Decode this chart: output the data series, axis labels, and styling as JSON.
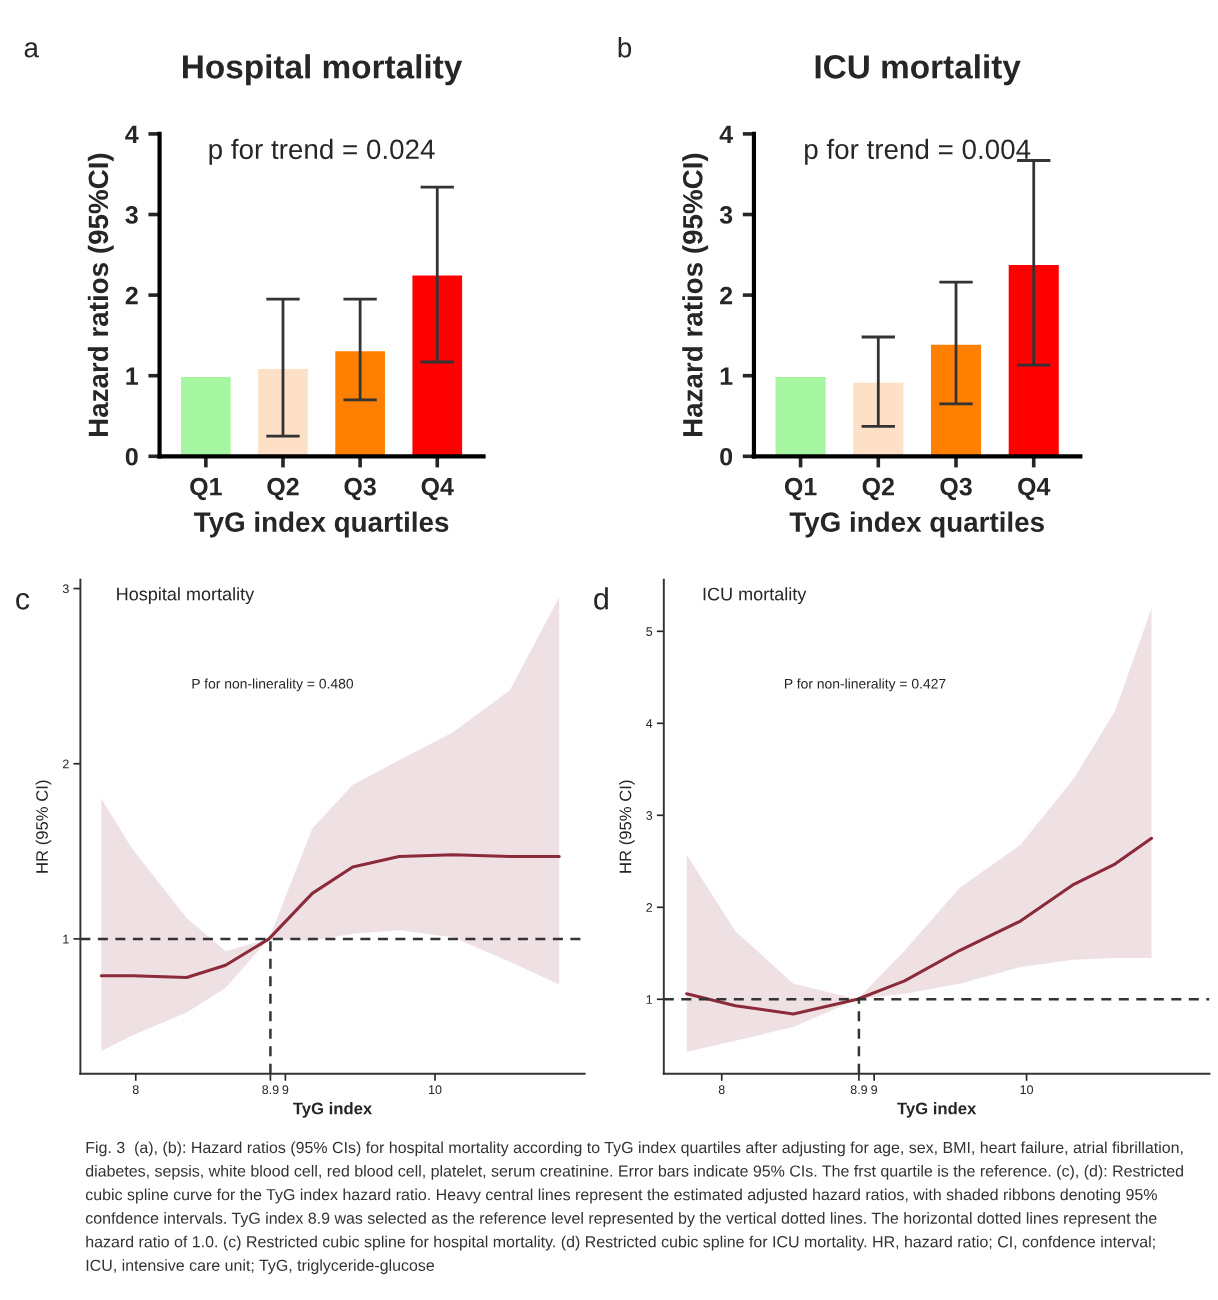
{
  "chart_data": [
    {
      "type": "bar",
      "title": "Hospital mortality",
      "annotations": [
        "a",
        "p for trend = 0.024"
      ],
      "xlabel": "TyG index quartiles",
      "ylabel": "Hazard ratios (95%CI)",
      "categories": [
        "Q1",
        "Q2",
        "Q3",
        "Q4"
      ],
      "values": [
        1.0,
        1.1,
        1.32,
        2.26
      ],
      "errors": [
        null,
        [
          0.25,
          1.95
        ],
        [
          0.7,
          1.95
        ],
        [
          1.17,
          3.34
        ]
      ],
      "colors": [
        "#a6f5a0",
        "#fde0c6",
        "#ff8000",
        "#ff0000"
      ],
      "ylim": [
        0,
        4
      ],
      "yticks": [
        0,
        1,
        2,
        3,
        4
      ],
      "grid": false
    },
    {
      "type": "bar",
      "title": "ICU mortality",
      "annotations": [
        "b",
        "p for trend = 0.004"
      ],
      "xlabel": "TyG index quartiles",
      "ylabel": "Hazard ratios (95%CI)",
      "categories": [
        "Q1",
        "Q2",
        "Q3",
        "Q4"
      ],
      "values": [
        1.0,
        0.93,
        1.4,
        2.39
      ],
      "errors": [
        null,
        [
          0.37,
          1.48
        ],
        [
          0.65,
          2.16
        ],
        [
          1.13,
          3.67
        ]
      ],
      "colors": [
        "#a6f5a0",
        "#fde0c6",
        "#ff8000",
        "#ff0000"
      ],
      "ylim": [
        0,
        4
      ],
      "yticks": [
        0,
        1,
        2,
        3,
        4
      ],
      "grid": false
    },
    {
      "type": "line",
      "title": "Hospital mortality",
      "annotations": [
        "c",
        "P for non-linerality = 0.480"
      ],
      "xlabel": "TyG index",
      "ylabel": "HR (95% CI)",
      "xlim": [
        7.63,
        11.0
      ],
      "ylim": [
        0.23,
        3.05
      ],
      "xticks": [
        8,
        8.9,
        9,
        10
      ],
      "yticks": [
        1,
        2,
        3
      ],
      "grid": false,
      "series": [
        {
          "color": "#8b2a3a",
          "x": [
            7.77,
            7.98,
            8.34,
            8.6,
            8.89,
            9.18,
            9.45,
            9.76,
            10.12,
            10.5,
            10.83
          ],
          "values": [
            0.79,
            0.79,
            0.78,
            0.85,
            1.0,
            1.26,
            1.41,
            1.47,
            1.48,
            1.47,
            1.47
          ],
          "lower": [
            0.36,
            0.45,
            0.58,
            0.72,
            1.0,
            0.99,
            1.03,
            1.05,
            1.01,
            0.87,
            0.74
          ],
          "upper": [
            1.8,
            1.51,
            1.12,
            0.93,
            1.0,
            1.63,
            1.88,
            2.02,
            2.18,
            2.42,
            2.95
          ]
        }
      ],
      "ref_lines": [
        {
          "axis": "y",
          "value": 1,
          "line_style": "dashed"
        },
        {
          "axis": "x",
          "value": 8.9,
          "line_style": "dashed"
        }
      ]
    },
    {
      "type": "line",
      "title": "ICU mortality",
      "annotations": [
        "d",
        "P for non-linerality = 0.427",
        "Fig. 3  (a), (b): Hazard ratios (95% CIs) for hospital mortality according to TyG index quartiles after adjusting for age, sex, BMI, heart failure, atrial fibrillation,\ndiabetes, sepsis, white blood cell, red blood cell, platelet, serum creatinine. Error bars indicate 95% CIs. The frst quartile is the reference. (c), (d): Restricted\ncubic spline curve for the TyG index hazard ratio. Heavy central lines represent the estimated adjusted hazard ratios, with shaded ribbons denoting 95%\nconfdence intervals. TyG index 8.9 was selected as the reference level represented by the vertical dotted lines. The horizontal dotted lines represent the\nhazard ratio of 1.0. (c) Restricted cubic spline for hospital mortality. (d) Restricted cubic spline for ICU mortality. HR, hazard ratio; CI, confdence interval;\nICU, intensive care unit; TyG, triglyceride-glucose"
      ],
      "xlabel": "TyG index",
      "ylabel": "HR (95% CI)",
      "xlim": [
        7.62,
        11.2
      ],
      "ylim": [
        0.19,
        5.56
      ],
      "xticks": [
        8,
        8.9,
        9,
        10
      ],
      "yticks": [
        1,
        2,
        3,
        4,
        5
      ],
      "grid": false,
      "series": [
        {
          "color": "#8b2a3a",
          "x": [
            7.77,
            8.09,
            8.47,
            8.89,
            9.2,
            9.56,
            9.96,
            10.31,
            10.58,
            10.82
          ],
          "values": [
            1.06,
            0.93,
            0.84,
            1.0,
            1.2,
            1.53,
            1.85,
            2.25,
            2.47,
            2.75
          ],
          "lower": [
            0.43,
            0.55,
            0.7,
            1.0,
            1.06,
            1.17,
            1.35,
            1.43,
            1.45,
            1.45
          ],
          "upper": [
            2.57,
            1.74,
            1.17,
            1.0,
            1.53,
            2.21,
            2.68,
            3.4,
            4.13,
            5.25
          ]
        }
      ],
      "ref_lines": [
        {
          "axis": "y",
          "value": 1,
          "line_style": "dashed"
        },
        {
          "axis": "x",
          "value": 8.9,
          "line_style": "dashed"
        }
      ]
    }
  ]
}
